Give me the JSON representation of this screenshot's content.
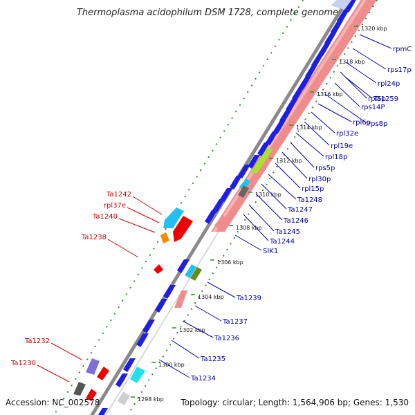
{
  "title": "Thermoplasma acidophilum DSM 1728, complete genome",
  "footer": {
    "accession": "Accession: NC_002578",
    "topology": "Topology: circular; Length: 1,564,906 bp; Genes: 1,530"
  },
  "colors": {
    "forward_gene": "#1f1fe0",
    "reverse_label": "#cc0000",
    "forward_label": "#00009a",
    "rrna_band": "#f08c8c",
    "backbone": "#8a8a8a",
    "gc_dots": "#2c8a2c"
  },
  "ticks": [
    "1298 kbp",
    "1300 kbp",
    "1302 kbp",
    "1304 kbp",
    "1306 kbp",
    "1308 kbp",
    "1310 kbp",
    "1312 kbp",
    "1314 kbp",
    "1316 kbp",
    "1318 kbp",
    "1320 kbp"
  ],
  "right_labels": [
    "rpmC",
    "rps17p",
    "rpl24p",
    "rpl5p",
    "Ta1259",
    "rps14P",
    "rps8p",
    "rpl6p",
    "rpl32e",
    "rpl19e",
    "rpl18p",
    "rps5p",
    "rpl30p",
    "rpl15p",
    "Ta1248",
    "Ta1247",
    "Ta1246",
    "Ta1245",
    "Ta1244",
    "SIK1",
    "Ta1239",
    "Ta1237",
    "Ta1236",
    "Ta1235",
    "Ta1234"
  ],
  "left_labels": [
    "Ta1242",
    "rpl37e",
    "Ta1240",
    "Ta1238",
    "Ta1232",
    "Ta1230"
  ]
}
